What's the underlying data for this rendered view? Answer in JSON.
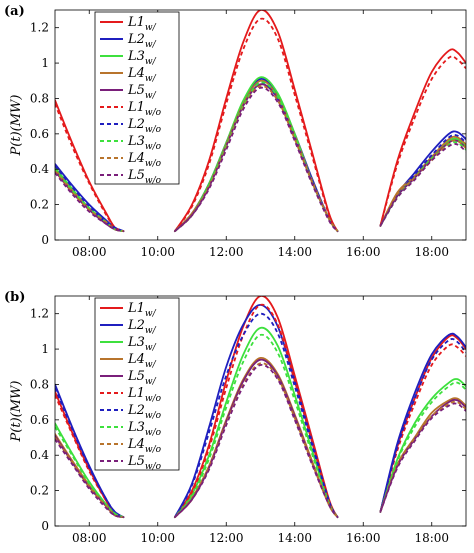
{
  "chart_data": [
    {
      "type": "line",
      "panel_label": "(a)",
      "ylabel": "P(t)(MW)",
      "xlim": [
        7.0,
        19.0
      ],
      "ylim": [
        0,
        1.3
      ],
      "xticks": [
        8,
        10,
        12,
        14,
        16,
        18
      ],
      "xtick_labels": [
        "08:00",
        "10:00",
        "12:00",
        "14:00",
        "16:00",
        "18:00"
      ],
      "yticks": [
        0,
        0.2,
        0.4,
        0.6,
        0.8,
        1.0,
        1.2
      ],
      "ytick_labels": [
        "0",
        "0.2",
        "0.4",
        "0.6",
        "0.8",
        "1",
        "1.2"
      ],
      "grid": false,
      "legend_position": "top-left",
      "segments_x": [
        [
          7.0,
          7.5,
          8.0,
          8.5,
          8.75,
          9.0
        ],
        [
          10.5,
          11.0,
          11.5,
          12.0,
          12.5,
          13.0,
          13.5,
          14.0,
          14.5,
          15.0,
          15.25
        ],
        [
          16.5,
          17.0,
          17.5,
          18.0,
          18.5,
          18.75,
          19.0
        ]
      ],
      "series": [
        {
          "name": "L1",
          "sub": "w/",
          "color": "#e41a1c",
          "dash": false,
          "segments_y": [
            [
              0.79,
              0.55,
              0.33,
              0.15,
              0.07,
              0.05
            ],
            [
              0.05,
              0.2,
              0.45,
              0.8,
              1.12,
              1.3,
              1.18,
              0.85,
              0.5,
              0.15,
              0.05
            ],
            [
              0.08,
              0.45,
              0.72,
              0.95,
              1.07,
              1.06,
              1.0
            ]
          ]
        },
        {
          "name": "L2",
          "sub": "w/",
          "color": "#1f1fbf",
          "dash": false,
          "segments_y": [
            [
              0.43,
              0.31,
              0.2,
              0.11,
              0.07,
              0.05
            ],
            [
              0.05,
              0.15,
              0.32,
              0.55,
              0.78,
              0.91,
              0.82,
              0.6,
              0.35,
              0.12,
              0.05
            ],
            [
              0.08,
              0.26,
              0.38,
              0.5,
              0.6,
              0.61,
              0.57
            ]
          ]
        },
        {
          "name": "L3",
          "sub": "w/",
          "color": "#3de03d",
          "dash": false,
          "segments_y": [
            [
              0.41,
              0.29,
              0.18,
              0.1,
              0.06,
              0.05
            ],
            [
              0.05,
              0.15,
              0.32,
              0.55,
              0.79,
              0.92,
              0.83,
              0.6,
              0.34,
              0.12,
              0.05
            ],
            [
              0.08,
              0.25,
              0.36,
              0.47,
              0.56,
              0.57,
              0.53
            ]
          ]
        },
        {
          "name": "L4",
          "sub": "w/",
          "color": "#b8742c",
          "dash": false,
          "segments_y": [
            [
              0.4,
              0.28,
              0.18,
              0.1,
              0.06,
              0.05
            ],
            [
              0.05,
              0.15,
              0.31,
              0.54,
              0.77,
              0.9,
              0.81,
              0.59,
              0.34,
              0.12,
              0.05
            ],
            [
              0.08,
              0.27,
              0.36,
              0.47,
              0.57,
              0.58,
              0.54
            ]
          ]
        },
        {
          "name": "L5",
          "sub": "w/",
          "color": "#7a1f7a",
          "dash": false,
          "segments_y": [
            [
              0.39,
              0.27,
              0.17,
              0.09,
              0.06,
              0.05
            ],
            [
              0.05,
              0.14,
              0.3,
              0.53,
              0.76,
              0.88,
              0.8,
              0.58,
              0.33,
              0.12,
              0.05
            ],
            [
              0.08,
              0.25,
              0.35,
              0.46,
              0.55,
              0.56,
              0.52
            ]
          ]
        },
        {
          "name": "L1",
          "sub": "w/o",
          "color": "#e41a1c",
          "dash": true,
          "segments_y": [
            [
              0.77,
              0.53,
              0.32,
              0.14,
              0.07,
              0.05
            ],
            [
              0.05,
              0.19,
              0.43,
              0.77,
              1.08,
              1.25,
              1.14,
              0.82,
              0.48,
              0.14,
              0.05
            ],
            [
              0.08,
              0.43,
              0.69,
              0.91,
              1.03,
              1.02,
              0.97
            ]
          ]
        },
        {
          "name": "L2",
          "sub": "w/o",
          "color": "#1f1fbf",
          "dash": true,
          "segments_y": [
            [
              0.42,
              0.3,
              0.19,
              0.1,
              0.07,
              0.05
            ],
            [
              0.05,
              0.14,
              0.31,
              0.53,
              0.76,
              0.89,
              0.8,
              0.58,
              0.34,
              0.12,
              0.05
            ],
            [
              0.08,
              0.25,
              0.37,
              0.48,
              0.58,
              0.59,
              0.55
            ]
          ]
        },
        {
          "name": "L3",
          "sub": "w/o",
          "color": "#3de03d",
          "dash": true,
          "segments_y": [
            [
              0.4,
              0.28,
              0.18,
              0.1,
              0.06,
              0.05
            ],
            [
              0.05,
              0.14,
              0.31,
              0.53,
              0.76,
              0.89,
              0.81,
              0.59,
              0.33,
              0.12,
              0.05
            ],
            [
              0.08,
              0.24,
              0.35,
              0.46,
              0.54,
              0.55,
              0.51
            ]
          ]
        },
        {
          "name": "L4",
          "sub": "w/o",
          "color": "#b8742c",
          "dash": true,
          "segments_y": [
            [
              0.39,
              0.27,
              0.17,
              0.1,
              0.06,
              0.05
            ],
            [
              0.05,
              0.14,
              0.3,
              0.52,
              0.75,
              0.87,
              0.79,
              0.57,
              0.33,
              0.12,
              0.05
            ],
            [
              0.08,
              0.26,
              0.35,
              0.45,
              0.55,
              0.56,
              0.52
            ]
          ]
        },
        {
          "name": "L5",
          "sub": "w/o",
          "color": "#7a1f7a",
          "dash": true,
          "segments_y": [
            [
              0.38,
              0.26,
              0.16,
              0.09,
              0.06,
              0.05
            ],
            [
              0.05,
              0.14,
              0.29,
              0.51,
              0.74,
              0.86,
              0.78,
              0.56,
              0.32,
              0.11,
              0.05
            ],
            [
              0.08,
              0.24,
              0.34,
              0.45,
              0.53,
              0.54,
              0.5
            ]
          ]
        }
      ]
    },
    {
      "type": "line",
      "panel_label": "(b)",
      "ylabel": "P(t)(MW)",
      "xlim": [
        7.0,
        19.0
      ],
      "ylim": [
        0,
        1.3
      ],
      "xticks": [
        8,
        10,
        12,
        14,
        16,
        18
      ],
      "xtick_labels": [
        "08:00",
        "10:00",
        "12:00",
        "14:00",
        "16:00",
        "18:00"
      ],
      "yticks": [
        0,
        0.2,
        0.4,
        0.6,
        0.8,
        1.0,
        1.2
      ],
      "ytick_labels": [
        "0",
        "0.2",
        "0.4",
        "0.6",
        "0.8",
        "1",
        "1.2"
      ],
      "grid": false,
      "legend_position": "top-left",
      "segments_x": [
        [
          7.0,
          7.5,
          8.0,
          8.5,
          8.75,
          9.0
        ],
        [
          10.5,
          11.0,
          11.5,
          12.0,
          12.5,
          13.0,
          13.5,
          14.0,
          14.5,
          15.0,
          15.25
        ],
        [
          16.5,
          17.0,
          17.5,
          18.0,
          18.5,
          18.75,
          19.0
        ]
      ],
      "series": [
        {
          "name": "L1",
          "sub": "w/",
          "color": "#e41a1c",
          "dash": false,
          "segments_y": [
            [
              0.76,
              0.53,
              0.32,
              0.14,
              0.07,
              0.05
            ],
            [
              0.05,
              0.2,
              0.46,
              0.82,
              1.13,
              1.3,
              1.18,
              0.85,
              0.5,
              0.15,
              0.05
            ],
            [
              0.08,
              0.45,
              0.72,
              0.95,
              1.07,
              1.06,
              1.0
            ]
          ]
        },
        {
          "name": "L2",
          "sub": "w/",
          "color": "#1f1fbf",
          "dash": false,
          "segments_y": [
            [
              0.8,
              0.56,
              0.34,
              0.15,
              0.08,
              0.05
            ],
            [
              0.05,
              0.24,
              0.56,
              0.9,
              1.14,
              1.25,
              1.13,
              0.82,
              0.48,
              0.14,
              0.05
            ],
            [
              0.08,
              0.47,
              0.75,
              0.97,
              1.08,
              1.07,
              1.01
            ]
          ]
        },
        {
          "name": "L3",
          "sub": "w/",
          "color": "#3de03d",
          "dash": false,
          "segments_y": [
            [
              0.58,
              0.41,
              0.25,
              0.12,
              0.07,
              0.05
            ],
            [
              0.05,
              0.18,
              0.4,
              0.7,
              0.97,
              1.12,
              1.02,
              0.74,
              0.43,
              0.13,
              0.05
            ],
            [
              0.08,
              0.38,
              0.58,
              0.72,
              0.81,
              0.83,
              0.79
            ]
          ]
        },
        {
          "name": "L4",
          "sub": "w/",
          "color": "#b8742c",
          "dash": false,
          "segments_y": [
            [
              0.52,
              0.37,
              0.23,
              0.11,
              0.06,
              0.05
            ],
            [
              0.05,
              0.16,
              0.34,
              0.6,
              0.83,
              0.95,
              0.86,
              0.63,
              0.37,
              0.12,
              0.05
            ],
            [
              0.08,
              0.35,
              0.5,
              0.64,
              0.71,
              0.72,
              0.68
            ]
          ]
        },
        {
          "name": "L5",
          "sub": "w/",
          "color": "#7a1f7a",
          "dash": false,
          "segments_y": [
            [
              0.51,
              0.36,
              0.22,
              0.11,
              0.06,
              0.05
            ],
            [
              0.05,
              0.15,
              0.33,
              0.59,
              0.82,
              0.94,
              0.85,
              0.62,
              0.36,
              0.12,
              0.05
            ],
            [
              0.08,
              0.34,
              0.49,
              0.62,
              0.7,
              0.71,
              0.67
            ]
          ]
        },
        {
          "name": "L1",
          "sub": "w/o",
          "color": "#e41a1c",
          "dash": true,
          "segments_y": [
            [
              0.74,
              0.52,
              0.31,
              0.14,
              0.07,
              0.05
            ],
            [
              0.05,
              0.19,
              0.44,
              0.78,
              1.08,
              1.25,
              1.14,
              0.82,
              0.48,
              0.14,
              0.05
            ],
            [
              0.08,
              0.43,
              0.69,
              0.91,
              1.02,
              1.01,
              0.96
            ]
          ]
        },
        {
          "name": "L2",
          "sub": "w/o",
          "color": "#1f1fbf",
          "dash": true,
          "segments_y": [
            [
              0.78,
              0.55,
              0.33,
              0.15,
              0.08,
              0.05
            ],
            [
              0.05,
              0.23,
              0.53,
              0.85,
              1.08,
              1.2,
              1.09,
              0.79,
              0.46,
              0.14,
              0.05
            ],
            [
              0.08,
              0.45,
              0.72,
              0.94,
              1.05,
              1.04,
              0.98
            ]
          ]
        },
        {
          "name": "L3",
          "sub": "w/o",
          "color": "#3de03d",
          "dash": true,
          "segments_y": [
            [
              0.56,
              0.4,
              0.24,
              0.12,
              0.07,
              0.05
            ],
            [
              0.05,
              0.17,
              0.38,
              0.67,
              0.93,
              1.08,
              0.98,
              0.71,
              0.41,
              0.13,
              0.05
            ],
            [
              0.08,
              0.37,
              0.56,
              0.7,
              0.79,
              0.81,
              0.77
            ]
          ]
        },
        {
          "name": "L4",
          "sub": "w/o",
          "color": "#b8742c",
          "dash": true,
          "segments_y": [
            [
              0.5,
              0.36,
              0.22,
              0.11,
              0.06,
              0.05
            ],
            [
              0.05,
              0.15,
              0.33,
              0.58,
              0.8,
              0.92,
              0.84,
              0.61,
              0.36,
              0.12,
              0.05
            ],
            [
              0.08,
              0.34,
              0.49,
              0.62,
              0.69,
              0.7,
              0.66
            ]
          ]
        },
        {
          "name": "L5",
          "sub": "w/o",
          "color": "#7a1f7a",
          "dash": true,
          "segments_y": [
            [
              0.49,
              0.35,
              0.21,
              0.1,
              0.06,
              0.05
            ],
            [
              0.05,
              0.15,
              0.32,
              0.57,
              0.79,
              0.91,
              0.83,
              0.6,
              0.35,
              0.12,
              0.05
            ],
            [
              0.08,
              0.33,
              0.48,
              0.61,
              0.68,
              0.69,
              0.65
            ]
          ]
        }
      ]
    }
  ]
}
